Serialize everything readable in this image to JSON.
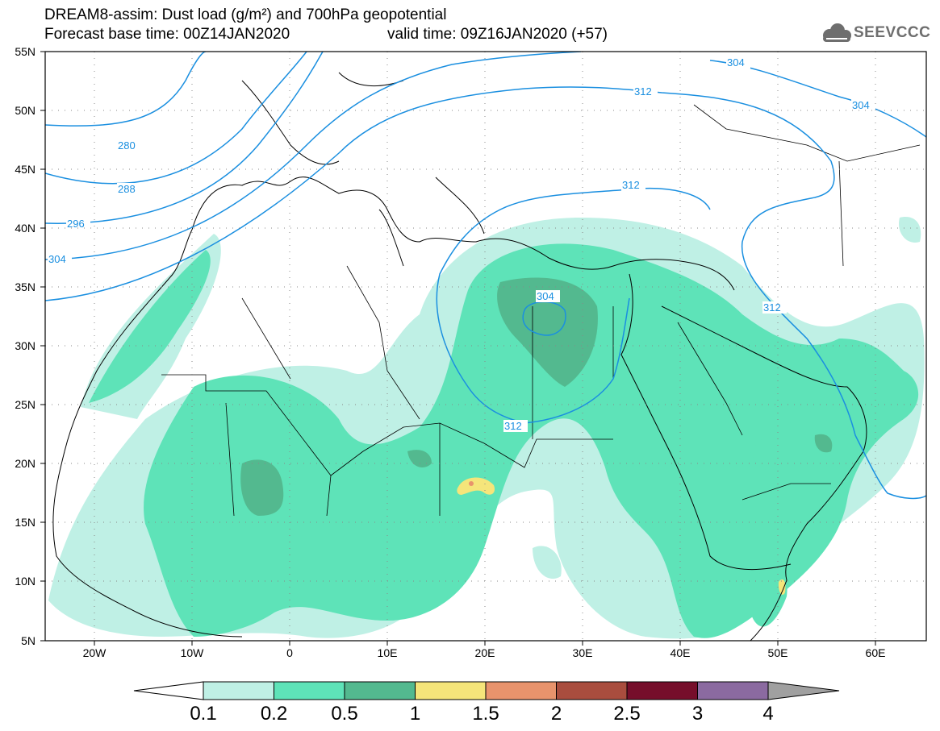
{
  "header": {
    "title_line1": "DREAM8-assim: Dust load (g/m²) and 700hPa geopotential",
    "base_time": "Forecast base time: 00Z14JAN2020",
    "valid_time": "valid time: 09Z16JAN2020 (+57)",
    "logo_text": "SEEVCCC"
  },
  "map": {
    "lat_labels": [
      "55N",
      "50N",
      "45N",
      "40N",
      "35N",
      "30N",
      "25N",
      "20N",
      "15N",
      "10N",
      "5N"
    ],
    "lon_labels": [
      "20W",
      "10W",
      "0",
      "10E",
      "20E",
      "30E",
      "40E",
      "50E",
      "60E"
    ],
    "isoline_labels": [
      "280",
      "288",
      "296",
      "304",
      "312",
      "312",
      "312",
      "312",
      "304",
      "304",
      "304"
    ]
  },
  "colorbar": {
    "labels": [
      "0.1",
      "0.2",
      "0.5",
      "1",
      "1.5",
      "2",
      "2.5",
      "3",
      "4"
    ],
    "colors": [
      "#bff0e5",
      "#5ee3b8",
      "#53b98f",
      "#f5e57a",
      "#e8936c",
      "#a94d3e",
      "#760e2b",
      "#8b6aa0"
    ]
  },
  "colors": {
    "isoline": "#1a8fe0",
    "coast": "#000000",
    "dust_low": "#bff0e5",
    "dust_mid": "#5ee3b8",
    "dust_high": "#53b98f"
  }
}
